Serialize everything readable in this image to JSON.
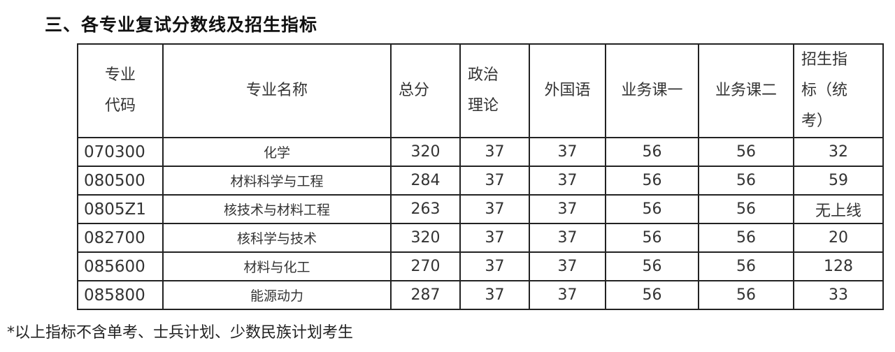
{
  "title": "三、各专业复试分数线及招生指标",
  "table": {
    "headers": [
      "专业代码",
      "专业名称",
      "总分",
      "政治理论",
      "外国语",
      "业务课一",
      "业务课二",
      "招生指标（统考）"
    ],
    "header_lines": [
      [
        "专业",
        "代码"
      ],
      [
        "专业名称"
      ],
      [
        "总分"
      ],
      [
        "政治",
        "理论"
      ],
      [
        "外国语"
      ],
      [
        "业务课一"
      ],
      [
        "业务课二"
      ],
      [
        "招生指",
        "标（统",
        "考）"
      ]
    ],
    "rows": [
      [
        "070300",
        "化学",
        "320",
        "37",
        "37",
        "56",
        "56",
        "32"
      ],
      [
        "080500",
        "材料科学与工程",
        "284",
        "37",
        "37",
        "56",
        "56",
        "59"
      ],
      [
        "0805Z1",
        "核技术与材料工程",
        "263",
        "37",
        "37",
        "56",
        "56",
        "无上线"
      ],
      [
        "082700",
        "核科学与技术",
        "320",
        "37",
        "37",
        "56",
        "56",
        "20"
      ],
      [
        "085600",
        "材料与化工",
        "270",
        "37",
        "37",
        "56",
        "56",
        "128"
      ],
      [
        "085800",
        "能源动力",
        "287",
        "37",
        "37",
        "56",
        "56",
        "33"
      ]
    ]
  },
  "footnote": "*以上指标不含单考、士兵计划、少数民族计划考生"
}
